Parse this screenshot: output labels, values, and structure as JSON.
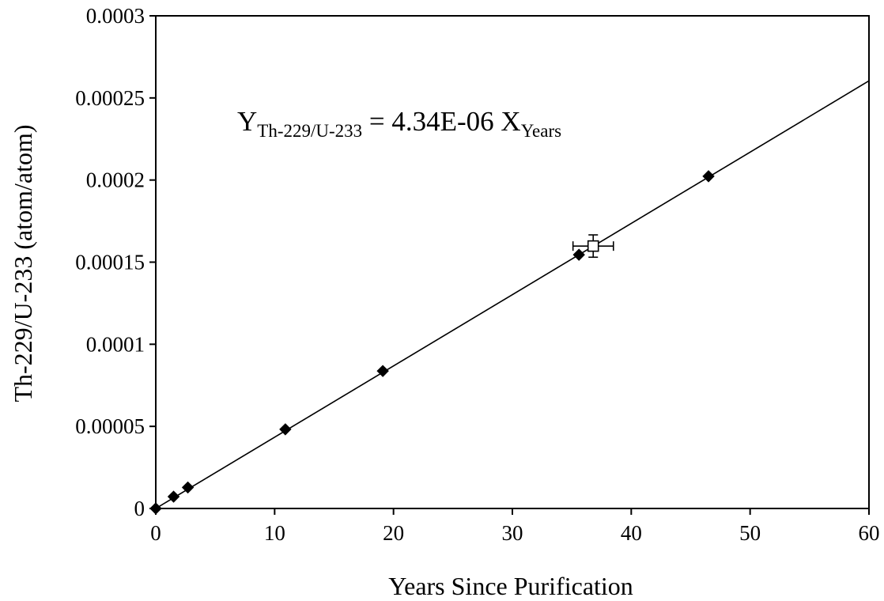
{
  "chart_data": {
    "type": "scatter",
    "title": "",
    "xlabel": "Years Since Purification",
    "ylabel": "Th-229/U-233 (atom/atom)",
    "xlim": [
      0,
      60
    ],
    "ylim": [
      0,
      0.0003
    ],
    "x_ticks": [
      0,
      10,
      20,
      30,
      40,
      50,
      60
    ],
    "x_tick_labels": [
      "0",
      "10",
      "20",
      "30",
      "40",
      "50",
      "60"
    ],
    "y_ticks": [
      0,
      5e-05,
      0.0001,
      0.00015,
      0.0002,
      0.00025,
      0.0003
    ],
    "y_tick_labels": [
      "0",
      "0.00005",
      "0.0001",
      "0.00015",
      "0.0002",
      "0.00025",
      "0.0003"
    ],
    "grid": false,
    "legend": "none",
    "series": [
      {
        "marker": "filled-diamond",
        "color": "#000000",
        "x": [
          0,
          1.5,
          2.7,
          10.9,
          19.1,
          35.6,
          46.5
        ],
        "y": [
          0,
          7.2e-06,
          1.28e-05,
          4.82e-05,
          8.37e-05,
          0.0001545,
          0.0002023
        ]
      },
      {
        "marker": "open-square",
        "color": "#000000",
        "x": [
          36.8
        ],
        "y": [
          0.0001598
        ],
        "x_err": [
          1.7
        ],
        "y_err": [
          6.8e-06
        ]
      }
    ],
    "fit_lines": [
      {
        "slope": 4.34e-06,
        "intercept": 0,
        "x_range": [
          0,
          60
        ],
        "style": "solid",
        "color": "#000000"
      },
      {
        "slope": 4.34e-06,
        "intercept": 0,
        "x_range": [
          0,
          60
        ],
        "style": "dashed",
        "color": "#000000"
      }
    ],
    "annotation": {
      "y_symbol": "Y",
      "y_subscript": "Th-229/U-233",
      "equals_text": " = 4.34E-06 X",
      "x_subscript": "Years"
    }
  }
}
